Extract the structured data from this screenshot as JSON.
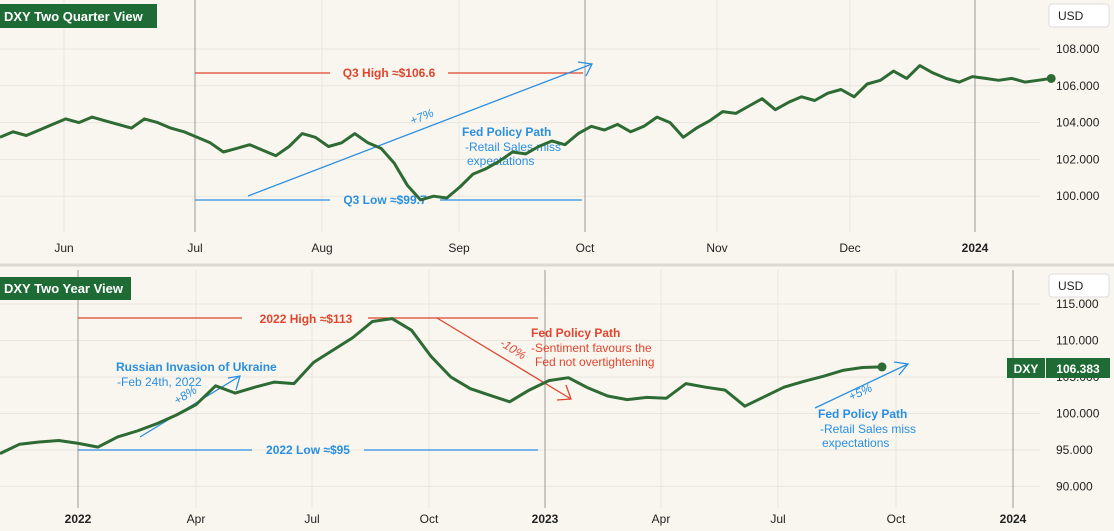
{
  "colors": {
    "background": "#f9f6ef",
    "grid": "#e9e6df",
    "line": "#2e6b34",
    "red": "#e0452e",
    "blue": "#2a8fe0",
    "badge": "#1f6b36",
    "divider": "#9a9a9a"
  },
  "chart_data": [
    {
      "type": "line",
      "title": "DXY Two Quarter View",
      "currency": "USD",
      "y_ticks": [
        "108.000",
        "106.000",
        "104.000",
        "102.000",
        "100.000"
      ],
      "x_ticks": [
        "Jun",
        "Jul",
        "Aug",
        "Sep",
        "Oct",
        "Nov",
        "Dec",
        "2024"
      ],
      "ylim": [
        98.3,
        109.5
      ],
      "high_label": "Q3 High ≈$106.6",
      "low_label": "Q3 Low ≈$99.7",
      "trend_label": "+7%",
      "note_title": "Fed Policy Path",
      "note_line1": "-Retail Sales miss",
      "note_line2": "expectations",
      "series": [
        {
          "name": "DXY",
          "x_days": [
            0,
            3,
            6,
            9,
            12,
            15,
            18,
            21,
            24,
            27,
            30,
            33,
            36,
            39,
            42,
            45,
            48,
            51,
            54,
            57,
            60,
            63,
            66,
            69,
            72,
            75,
            78,
            81,
            84,
            87,
            90,
            93,
            96,
            99,
            102,
            105,
            108,
            111,
            114,
            117,
            120,
            123,
            126,
            129,
            132,
            135,
            138,
            141,
            144,
            147,
            150,
            153,
            156,
            159,
            162,
            165,
            168,
            171,
            174,
            177,
            180,
            183,
            186,
            189,
            192,
            195,
            198,
            201,
            204,
            207,
            210,
            213,
            216,
            219,
            222,
            225,
            228,
            231,
            234,
            237,
            240
          ],
          "values": [
            103.2,
            103.5,
            103.3,
            103.6,
            103.9,
            104.2,
            104.0,
            104.3,
            104.1,
            103.9,
            103.7,
            104.2,
            104.0,
            103.7,
            103.5,
            103.2,
            102.9,
            102.4,
            102.6,
            102.8,
            102.5,
            102.2,
            102.7,
            103.4,
            103.2,
            102.7,
            102.9,
            103.4,
            102.9,
            102.6,
            101.8,
            100.6,
            99.8,
            100.0,
            99.9,
            100.5,
            101.2,
            101.5,
            101.9,
            102.4,
            102.3,
            102.7,
            103.0,
            102.8,
            103.4,
            103.8,
            103.6,
            103.9,
            103.5,
            103.8,
            104.3,
            104.0,
            103.2,
            103.7,
            104.1,
            104.6,
            104.5,
            104.9,
            105.3,
            104.7,
            105.1,
            105.4,
            105.2,
            105.6,
            105.8,
            105.4,
            106.1,
            106.3,
            106.8,
            106.4,
            107.1,
            106.7,
            106.4,
            106.2,
            106.5,
            106.4,
            106.3,
            106.4,
            106.2,
            106.3,
            106.4
          ]
        }
      ]
    },
    {
      "type": "line",
      "title": "DXY Two Year View",
      "currency": "USD",
      "last_symbol": "DXY",
      "last_value": "106.383",
      "y_ticks": [
        "115.000",
        "110.000",
        "105.000",
        "100.000",
        "95.000",
        "90.000"
      ],
      "x_ticks": [
        "2022",
        "Apr",
        "Jul",
        "Oct",
        "2023",
        "Apr",
        "Jul",
        "Oct",
        "2024"
      ],
      "ylim": [
        87.5,
        117.5
      ],
      "high_label": "2022 High ≈$113",
      "low_label": "2022 Low ≈$95",
      "russia_title": "Russian Invasion of Ukraine",
      "russia_date": "-Feb 24th, 2022",
      "trend_up_label": "+8%",
      "trend_down_label": "-10%",
      "trend_recent_label": "+5%",
      "fed1_title": "Fed Policy Path",
      "fed1_line1": "-Sentiment favours the",
      "fed1_line2": "Fed not overtightening",
      "fed2_title": "Fed Policy Path",
      "fed2_line1": "-Retail Sales miss",
      "fed2_line2": "expectations",
      "series": [
        {
          "name": "DXY",
          "x_months": [
            0,
            0.5,
            1,
            1.5,
            2,
            2.5,
            3,
            3.5,
            4,
            4.5,
            5,
            5.5,
            6,
            6.5,
            7,
            7.5,
            8,
            8.5,
            9,
            9.5,
            10,
            10.5,
            11,
            11.5,
            12,
            12.5,
            13,
            13.5,
            14,
            14.5,
            15,
            15.5,
            16,
            16.5,
            17,
            17.5,
            18,
            18.5,
            19,
            19.5,
            20,
            20.5,
            21,
            21.5,
            22,
            22.5
          ],
          "values": [
            94.5,
            95.8,
            96.1,
            96.3,
            95.9,
            95.4,
            96.8,
            97.6,
            98.6,
            99.8,
            101.2,
            103.8,
            102.8,
            103.6,
            104.3,
            104.1,
            107.0,
            108.7,
            110.4,
            112.6,
            113.0,
            111.4,
            107.8,
            105.0,
            103.4,
            102.5,
            101.6,
            103.2,
            104.5,
            104.9,
            103.5,
            102.4,
            101.9,
            102.2,
            102.1,
            104.1,
            103.6,
            103.2,
            101.0,
            102.3,
            103.6,
            104.4,
            105.1,
            105.9,
            106.3,
            106.383
          ]
        }
      ]
    }
  ]
}
